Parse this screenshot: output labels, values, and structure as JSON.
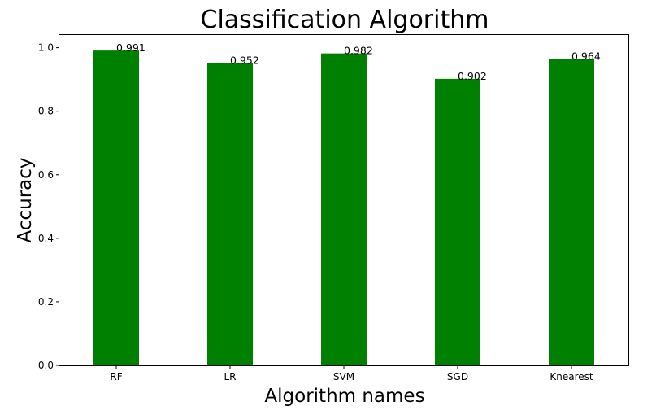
{
  "chart_data": {
    "type": "bar",
    "title": "Classification Algorithm",
    "xlabel": "Algorithm names",
    "ylabel": "Accuracy",
    "categories": [
      "RF",
      "LR",
      "SVM",
      "SGD",
      "Knearest"
    ],
    "values": [
      0.991,
      0.952,
      0.982,
      0.902,
      0.964
    ],
    "value_labels": [
      "0.991",
      "0.952",
      "0.982",
      "0.902",
      "0.964"
    ],
    "yticks": [
      "0.0",
      "0.2",
      "0.4",
      "0.6",
      "0.8",
      "1.0"
    ],
    "ylim": [
      0,
      1.04
    ],
    "bar_color": "#008000",
    "grid": false,
    "legend": "none"
  }
}
